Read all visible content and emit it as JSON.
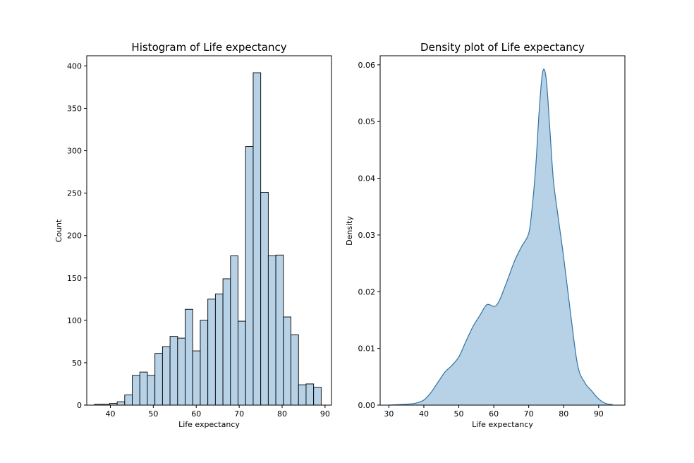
{
  "chart_data": [
    {
      "type": "bar",
      "title": "Histogram of Life expectancy",
      "xlabel": "Life expectancy",
      "ylabel": "Count",
      "xlim": [
        34.5,
        91.5
      ],
      "ylim": [
        0,
        412
      ],
      "xticks": [
        40,
        50,
        60,
        70,
        80,
        90
      ],
      "yticks": [
        0,
        50,
        100,
        150,
        200,
        250,
        300,
        350,
        400
      ],
      "bin_start": 36.3,
      "bin_width": 1.76,
      "values": [
        1,
        1,
        2,
        4,
        12,
        35,
        39,
        35,
        61,
        69,
        81,
        79,
        113,
        64,
        100,
        125,
        131,
        149,
        176,
        99,
        305,
        392,
        251,
        176,
        177,
        104,
        83,
        24,
        25,
        21
      ],
      "colors": {
        "fill": "#b7d1e6",
        "edge": "#000000"
      }
    },
    {
      "type": "area",
      "title": "Density plot of Life expectancy",
      "xlabel": "Life expectancy",
      "ylabel": "Density",
      "xlim": [
        27.5,
        97.5
      ],
      "ylim": [
        0,
        0.0616
      ],
      "xticks": [
        30,
        40,
        50,
        60,
        70,
        80,
        90
      ],
      "yticks": [
        0.0,
        0.01,
        0.02,
        0.03,
        0.04,
        0.05,
        0.06
      ],
      "ytick_labels": [
        "0.00",
        "0.01",
        "0.02",
        "0.03",
        "0.04",
        "0.05",
        "0.06"
      ],
      "x": [
        30,
        33,
        36,
        38,
        40,
        42,
        44,
        46,
        48,
        50,
        52,
        54,
        56,
        58,
        60,
        61,
        62,
        64,
        66,
        68,
        70,
        71,
        72,
        73,
        74,
        75,
        76,
        77,
        78,
        80,
        82,
        84,
        86,
        88,
        90,
        92,
        94
      ],
      "y": [
        0.0,
        0.0001,
        0.0002,
        0.0004,
        0.0009,
        0.0022,
        0.004,
        0.0058,
        0.007,
        0.0085,
        0.0112,
        0.0138,
        0.0158,
        0.0177,
        0.0174,
        0.0178,
        0.019,
        0.0222,
        0.0255,
        0.028,
        0.0303,
        0.035,
        0.042,
        0.052,
        0.0588,
        0.0575,
        0.049,
        0.04,
        0.035,
        0.026,
        0.016,
        0.007,
        0.004,
        0.0025,
        0.0011,
        0.0003,
        0.0001
      ],
      "colors": {
        "fill": "#b7d1e6",
        "line": "#3274a1"
      }
    }
  ]
}
